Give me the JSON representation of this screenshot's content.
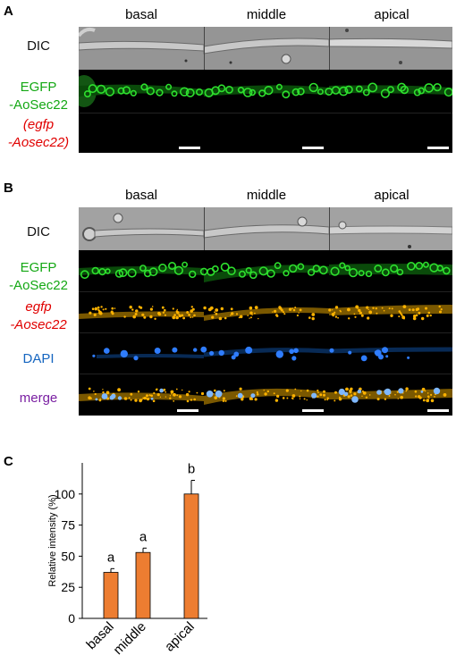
{
  "panel_a": {
    "letter": "A",
    "columns": [
      "basal",
      "middle",
      "apical"
    ],
    "row_dic": "DIC",
    "row_egfp_1": "EGFP",
    "row_egfp_2": "-AoSec22",
    "row_mutant_1": "(egfp",
    "row_mutant_2": "-Aosec22)"
  },
  "panel_b": {
    "letter": "B",
    "columns": [
      "basal",
      "middle",
      "apical"
    ],
    "row_dic": "DIC",
    "row_egfp_1": "EGFP",
    "row_egfp_2": "-AoSec22",
    "row_rna_1": "egfp",
    "row_rna_2": "-Aosec22",
    "row_dapi": "DAPI",
    "row_merge": "merge"
  },
  "panel_c": {
    "letter": "C",
    "chart_data": {
      "type": "bar",
      "categories": [
        "basal",
        "middle",
        "apical"
      ],
      "values": [
        37,
        53,
        100
      ],
      "errors": [
        3,
        3.5,
        11
      ],
      "significance": [
        "a",
        "a",
        "b"
      ],
      "ylabel": "Relative intensity (%)",
      "ylim": [
        0,
        125
      ],
      "yticks": [
        0,
        25,
        50,
        75,
        100
      ],
      "bar_color": "#ed7d31"
    }
  },
  "colors": {
    "green": "#14a814",
    "red": "#e00000",
    "blue": "#1565c0",
    "purple": "#7a1fa2"
  }
}
